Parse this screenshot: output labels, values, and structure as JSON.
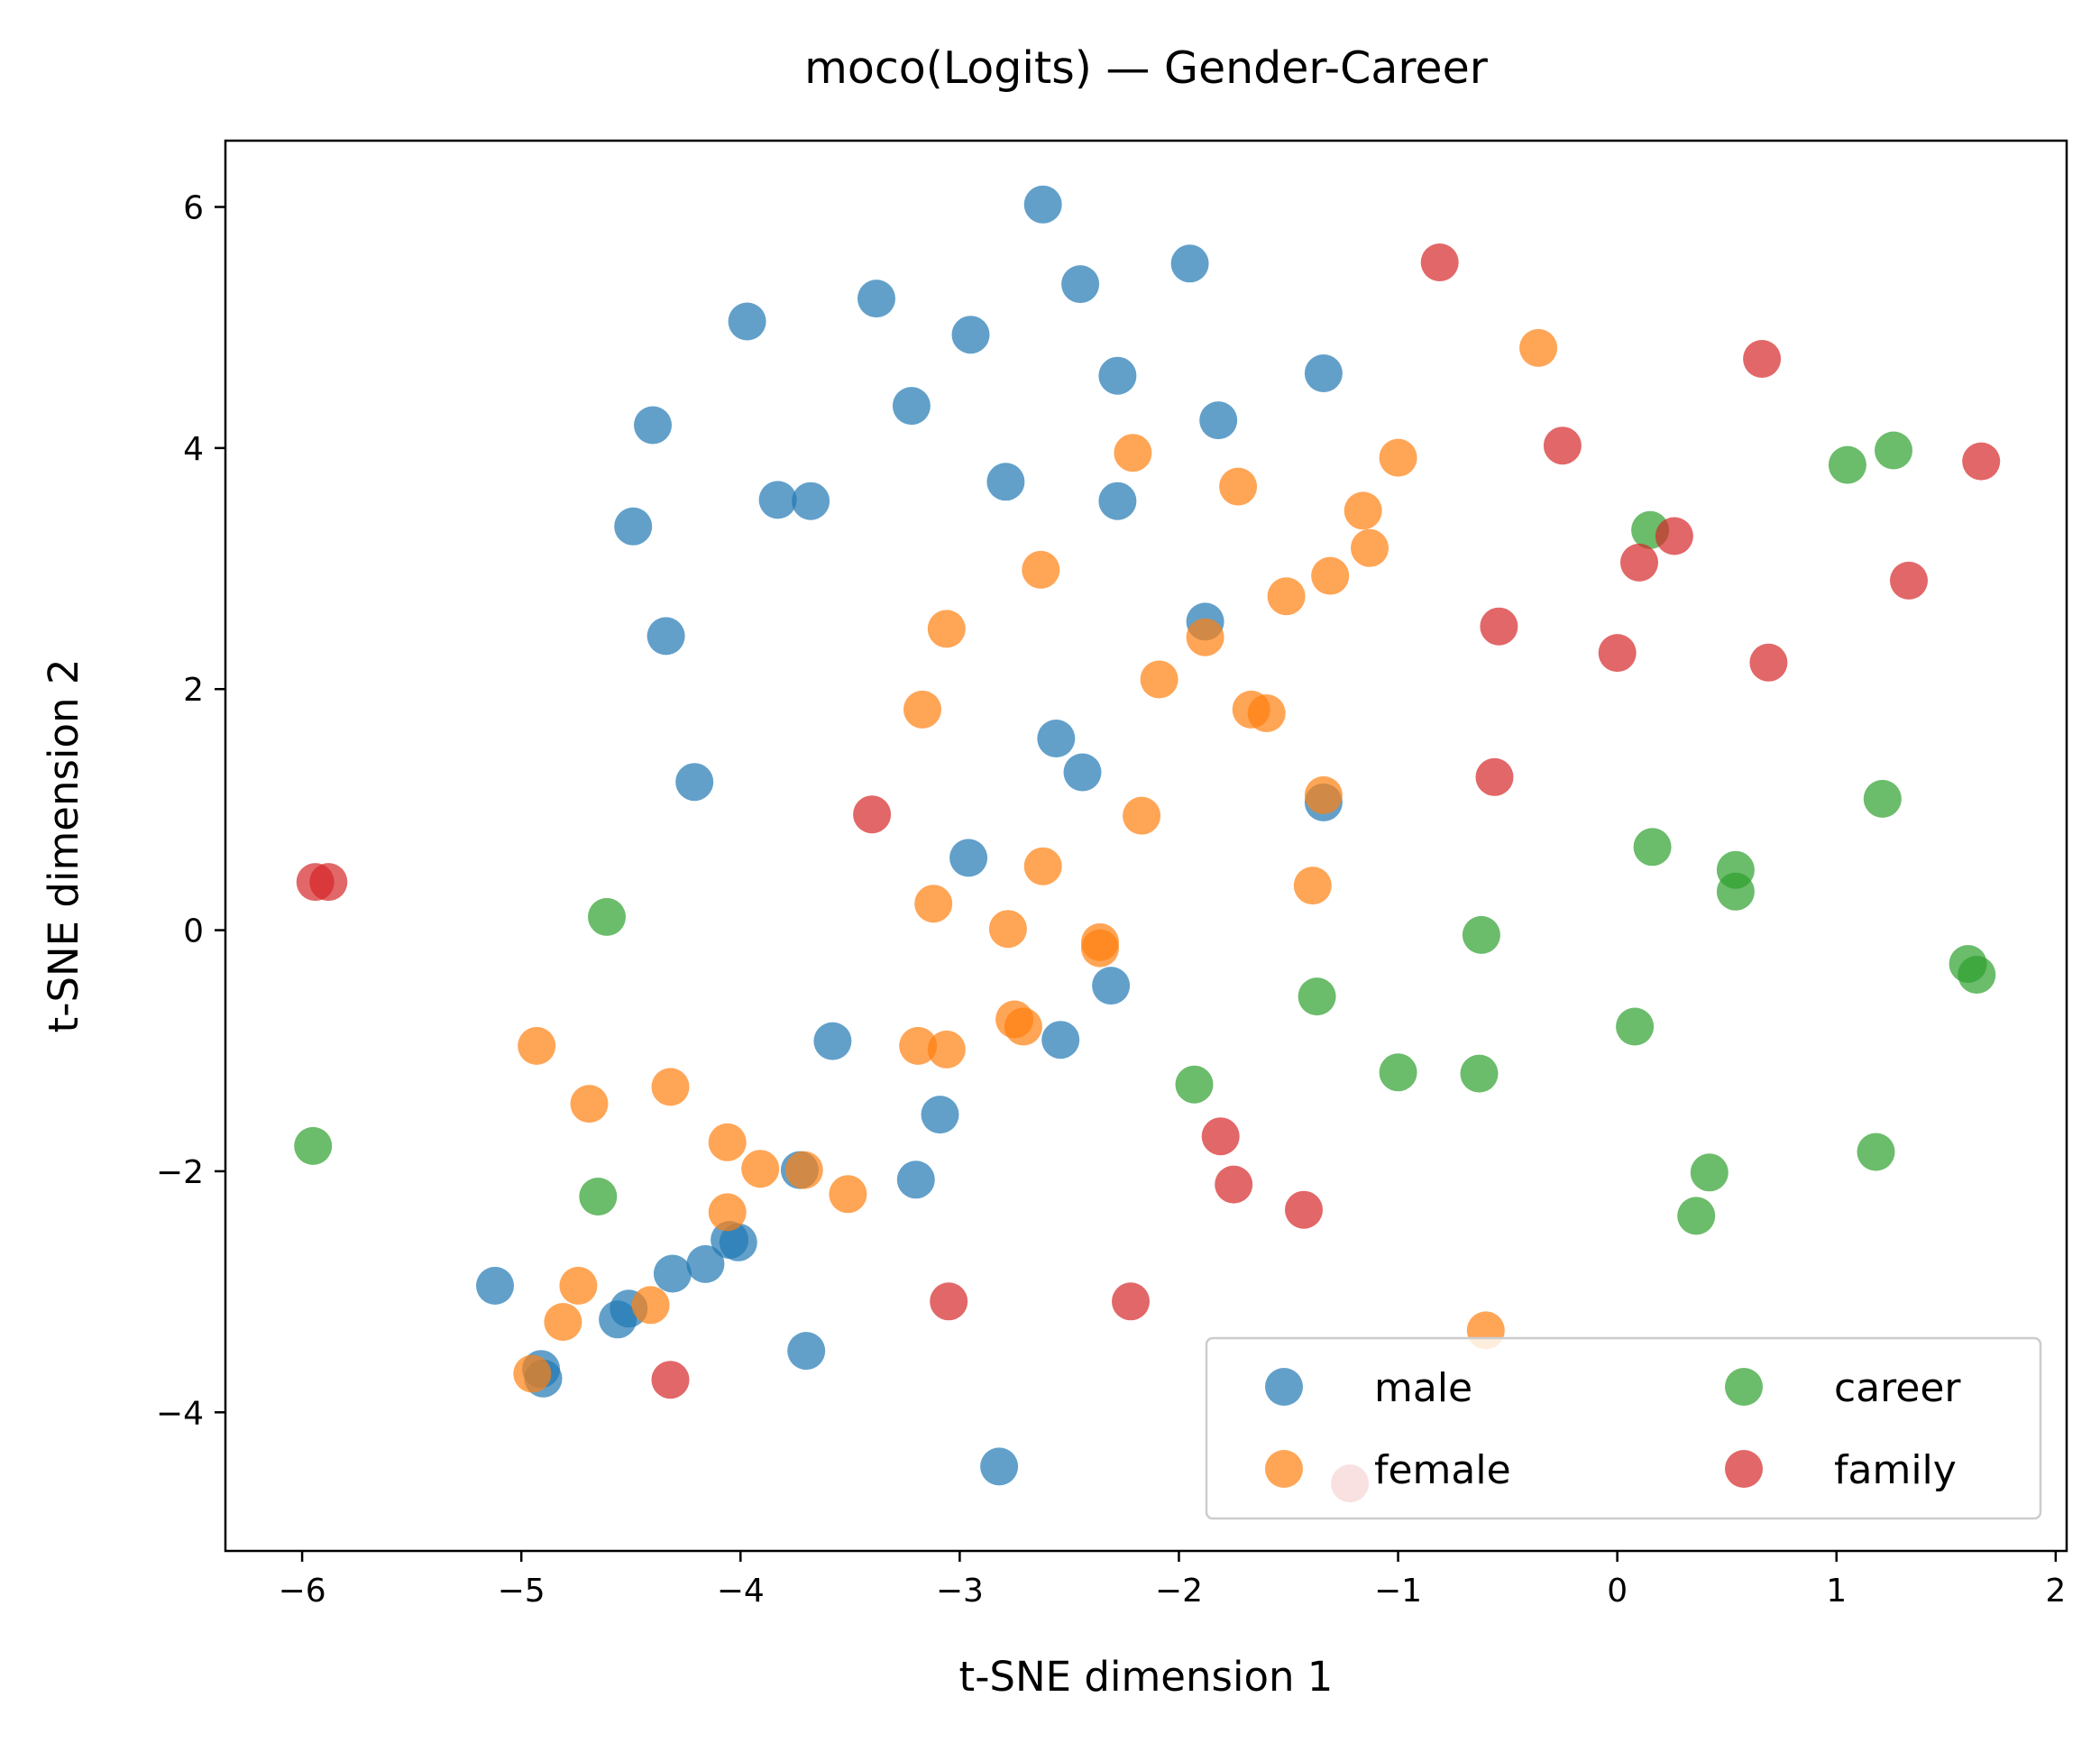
{
  "chart_data": {
    "type": "scatter",
    "title": "moco(Logits) — Gender-Career",
    "xlabel": "t-SNE dimension 1",
    "ylabel": "t-SNE dimension 2",
    "xlim": [
      -6.35,
      2.05
    ],
    "ylim": [
      -5.15,
      6.55
    ],
    "xticks": [
      -6,
      -5,
      -4,
      -3,
      -2,
      -1,
      0,
      1,
      2
    ],
    "yticks": [
      -4,
      -2,
      0,
      2,
      4,
      6
    ],
    "xtick_labels": [
      "−6",
      "−5",
      "−4",
      "−3",
      "−2",
      "−1",
      "0",
      "1",
      "2"
    ],
    "ytick_labels": [
      "−4",
      "−2",
      "0",
      "2",
      "4",
      "6"
    ],
    "grid": false,
    "legend": {
      "position": "lower-right",
      "columns": 2
    },
    "series": [
      {
        "name": "male",
        "color": "#1f77b4",
        "points": [
          [
            -2.62,
            6.02
          ],
          [
            -1.95,
            5.53
          ],
          [
            -2.45,
            5.36
          ],
          [
            -3.38,
            5.24
          ],
          [
            -3.97,
            5.05
          ],
          [
            -2.95,
            4.94
          ],
          [
            -2.28,
            4.6
          ],
          [
            -1.34,
            4.62
          ],
          [
            -3.22,
            4.35
          ],
          [
            -4.4,
            4.19
          ],
          [
            -1.82,
            4.23
          ],
          [
            -2.79,
            3.72
          ],
          [
            -3.83,
            3.57
          ],
          [
            -3.68,
            3.56
          ],
          [
            -2.28,
            3.56
          ],
          [
            -4.49,
            3.35
          ],
          [
            -1.88,
            2.56
          ],
          [
            -4.34,
            2.44
          ],
          [
            -2.56,
            1.59
          ],
          [
            -2.44,
            1.31
          ],
          [
            -4.21,
            1.23
          ],
          [
            -1.34,
            1.06
          ],
          [
            -2.96,
            0.6
          ],
          [
            -2.31,
            -0.46
          ],
          [
            -3.58,
            -0.92
          ],
          [
            -2.54,
            -0.91
          ],
          [
            -3.09,
            -1.53
          ],
          [
            -3.73,
            -1.99
          ],
          [
            -3.2,
            -2.07
          ],
          [
            -4.05,
            -2.57
          ],
          [
            -4.01,
            -2.59
          ],
          [
            -4.16,
            -2.77
          ],
          [
            -4.31,
            -2.85
          ],
          [
            -5.12,
            -2.95
          ],
          [
            -4.51,
            -3.14
          ],
          [
            -4.56,
            -3.23
          ],
          [
            -3.7,
            -3.49
          ],
          [
            -4.91,
            -3.64
          ],
          [
            -4.9,
            -3.72
          ],
          [
            -2.82,
            -4.45
          ]
        ]
      },
      {
        "name": "female",
        "color": "#ff7f0e",
        "points": [
          [
            -0.36,
            4.83
          ],
          [
            -2.21,
            3.96
          ],
          [
            -1.0,
            3.92
          ],
          [
            -1.73,
            3.68
          ],
          [
            -1.16,
            3.48
          ],
          [
            -1.13,
            3.17
          ],
          [
            -2.63,
            2.99
          ],
          [
            -1.31,
            2.94
          ],
          [
            -1.51,
            2.77
          ],
          [
            -3.06,
            2.5
          ],
          [
            -1.88,
            2.43
          ],
          [
            -2.09,
            2.08
          ],
          [
            -3.17,
            1.83
          ],
          [
            -1.67,
            1.83
          ],
          [
            -1.6,
            1.8
          ],
          [
            -1.34,
            1.12
          ],
          [
            -2.17,
            0.95
          ],
          [
            -2.62,
            0.53
          ],
          [
            -1.39,
            0.37
          ],
          [
            -3.12,
            0.22
          ],
          [
            -2.78,
            0.01
          ],
          [
            -2.36,
            -0.1
          ],
          [
            -2.36,
            -0.15
          ],
          [
            -2.75,
            -0.74
          ],
          [
            -2.71,
            -0.8
          ],
          [
            -4.93,
            -0.96
          ],
          [
            -3.19,
            -0.96
          ],
          [
            -3.06,
            -0.99
          ],
          [
            -4.32,
            -1.3
          ],
          [
            -4.69,
            -1.44
          ],
          [
            -4.06,
            -1.76
          ],
          [
            -3.91,
            -1.98
          ],
          [
            -3.71,
            -1.99
          ],
          [
            -3.51,
            -2.19
          ],
          [
            -4.06,
            -2.34
          ],
          [
            -4.74,
            -2.95
          ],
          [
            -4.41,
            -3.11
          ],
          [
            -4.81,
            -3.25
          ],
          [
            -0.6,
            -3.32
          ],
          [
            -4.95,
            -3.68
          ]
        ]
      },
      {
        "name": "career",
        "color": "#2ca02c",
        "points": [
          [
            1.26,
            3.98
          ],
          [
            1.05,
            3.86
          ],
          [
            0.15,
            3.32
          ],
          [
            1.21,
            1.09
          ],
          [
            0.16,
            0.69
          ],
          [
            0.54,
            0.5
          ],
          [
            0.54,
            0.32
          ],
          [
            -4.61,
            0.11
          ],
          [
            -0.62,
            -0.04
          ],
          [
            1.6,
            -0.28
          ],
          [
            1.64,
            -0.37
          ],
          [
            -1.37,
            -0.55
          ],
          [
            0.08,
            -0.8
          ],
          [
            -1.0,
            -1.18
          ],
          [
            -0.63,
            -1.19
          ],
          [
            -1.93,
            -1.28
          ],
          [
            -5.95,
            -1.79
          ],
          [
            1.18,
            -1.84
          ],
          [
            0.42,
            -2.01
          ],
          [
            -4.65,
            -2.21
          ],
          [
            0.36,
            -2.37
          ]
        ]
      },
      {
        "name": "family",
        "color": "#d62728",
        "points": [
          [
            -0.81,
            5.54
          ],
          [
            0.66,
            4.74
          ],
          [
            -0.25,
            4.02
          ],
          [
            1.66,
            3.89
          ],
          [
            0.26,
            3.27
          ],
          [
            0.1,
            3.05
          ],
          [
            1.33,
            2.9
          ],
          [
            -0.54,
            2.52
          ],
          [
            0.0,
            2.3
          ],
          [
            0.69,
            2.22
          ],
          [
            -0.56,
            1.27
          ],
          [
            -3.4,
            0.96
          ],
          [
            -5.94,
            0.4
          ],
          [
            -5.88,
            0.4
          ],
          [
            -1.81,
            -1.71
          ],
          [
            -1.75,
            -2.11
          ],
          [
            -1.43,
            -2.32
          ],
          [
            -3.05,
            -3.08
          ],
          [
            -2.22,
            -3.08
          ],
          [
            -4.32,
            -3.73
          ],
          [
            -1.22,
            -4.59
          ]
        ]
      }
    ]
  }
}
